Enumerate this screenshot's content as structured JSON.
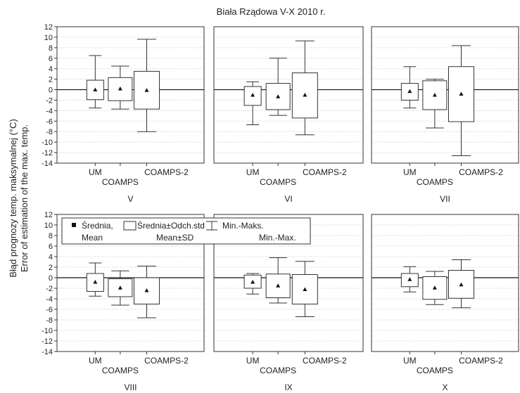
{
  "chart_data": {
    "type": "boxplot",
    "title": "Biała Rządowa V-X 2010 r.",
    "ylabel": "Błąd prognozy temp. maksymalnej (°C)",
    "ylabel2": "Error of estimation of the max. temp.",
    "ylim": [
      -14,
      12
    ],
    "yticks": [
      -14,
      -12,
      -10,
      -8,
      -6,
      -4,
      -2,
      0,
      2,
      4,
      6,
      8,
      10,
      12
    ],
    "grid": true,
    "categories": [
      "UM",
      "COAMPS",
      "COAMPS-2"
    ],
    "legend": {
      "placement": "inside-top-left",
      "entries": [
        {
          "symbol": "mean",
          "line1": "Średnia,",
          "line2": "Mean"
        },
        {
          "symbol": "box",
          "line1": "Średnia±Odch.std",
          "line2": "Mean±SD"
        },
        {
          "symbol": "whisker",
          "line1": "Min.-Maks.",
          "line2": "Min.-Max."
        }
      ]
    },
    "panels": [
      {
        "label": "V",
        "boxes": [
          {
            "category": "UM",
            "min": -3.5,
            "lower": -1.9,
            "mean": 0.0,
            "upper": 1.8,
            "max": 6.5
          },
          {
            "category": "COAMPS",
            "min": -3.7,
            "lower": -2.1,
            "mean": 0.2,
            "upper": 2.3,
            "max": 4.5
          },
          {
            "category": "COAMPS-2",
            "min": -8.0,
            "lower": -3.7,
            "mean": -0.1,
            "upper": 3.5,
            "max": 9.6
          }
        ]
      },
      {
        "label": "VI",
        "boxes": [
          {
            "category": "UM",
            "min": -6.7,
            "lower": -3.0,
            "mean": -1.0,
            "upper": 0.6,
            "max": 1.5
          },
          {
            "category": "COAMPS",
            "min": -4.9,
            "lower": -3.8,
            "mean": -1.3,
            "upper": 1.2,
            "max": 6.0
          },
          {
            "category": "COAMPS-2",
            "min": -8.6,
            "lower": -5.4,
            "mean": -1.0,
            "upper": 3.2,
            "max": 9.3
          }
        ]
      },
      {
        "label": "VII",
        "boxes": [
          {
            "category": "UM",
            "min": -3.5,
            "lower": -2.0,
            "mean": -0.3,
            "upper": 1.2,
            "max": 4.4
          },
          {
            "category": "COAMPS",
            "min": -7.3,
            "lower": -3.8,
            "mean": -1.0,
            "upper": 1.7,
            "max": 2.0
          },
          {
            "category": "COAMPS-2",
            "min": -12.6,
            "lower": -6.1,
            "mean": -0.8,
            "upper": 4.4,
            "max": 8.4
          }
        ]
      },
      {
        "label": "VIII",
        "boxes": [
          {
            "category": "UM",
            "min": -3.5,
            "lower": -2.6,
            "mean": -0.8,
            "upper": 0.8,
            "max": 2.8
          },
          {
            "category": "COAMPS",
            "min": -5.2,
            "lower": -3.6,
            "mean": -1.9,
            "upper": -0.2,
            "max": 1.3
          },
          {
            "category": "COAMPS-2",
            "min": -7.6,
            "lower": -5.0,
            "mean": -2.4,
            "upper": 0.0,
            "max": 2.2
          }
        ]
      },
      {
        "label": "IX",
        "boxes": [
          {
            "category": "UM",
            "min": -3.1,
            "lower": -2.0,
            "mean": -0.8,
            "upper": 0.5,
            "max": 0.8
          },
          {
            "category": "COAMPS",
            "min": -4.8,
            "lower": -3.8,
            "mean": -1.5,
            "upper": 0.7,
            "max": 3.8
          },
          {
            "category": "COAMPS-2",
            "min": -7.4,
            "lower": -5.0,
            "mean": -2.2,
            "upper": 0.6,
            "max": 3.1
          }
        ]
      },
      {
        "label": "X",
        "boxes": [
          {
            "category": "UM",
            "min": -2.7,
            "lower": -1.7,
            "mean": -0.3,
            "upper": 0.8,
            "max": 2.1
          },
          {
            "category": "COAMPS",
            "min": -5.1,
            "lower": -4.1,
            "mean": -1.9,
            "upper": 0.2,
            "max": 1.2
          },
          {
            "category": "COAMPS-2",
            "min": -5.7,
            "lower": -3.9,
            "mean": -1.3,
            "upper": 1.4,
            "max": 3.4
          }
        ]
      }
    ]
  }
}
